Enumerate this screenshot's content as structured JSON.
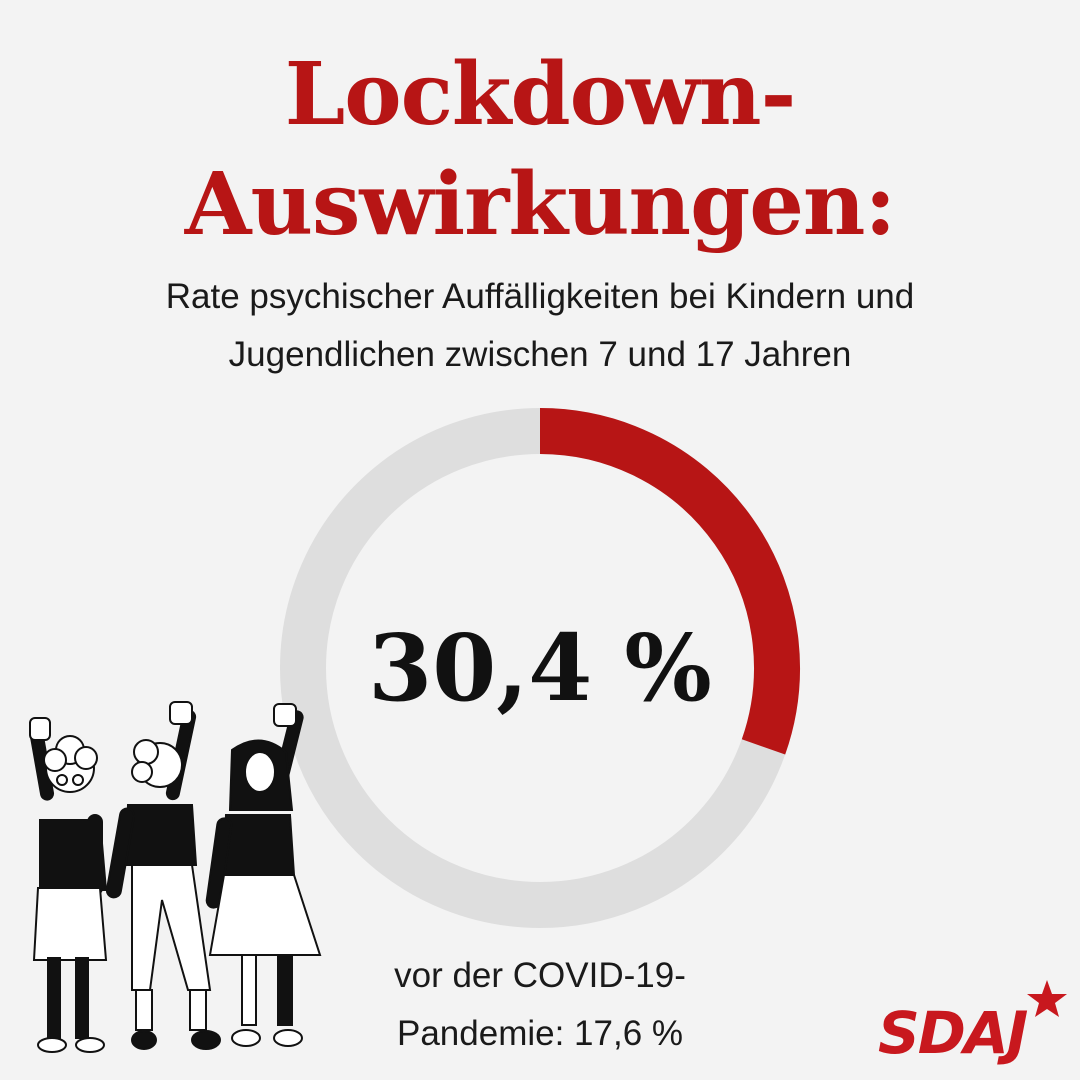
{
  "title": {
    "line1": "Lockdown-",
    "line2": "Auswirkungen:"
  },
  "subtitle": {
    "line1": "Rate psychischer Auffälligkeiten bei Kindern und",
    "line2": "Jugendlichen zwischen 7 und 17 Jahren"
  },
  "center_value": "30,4 %",
  "footnote": {
    "line1": "vor der COVID-19-",
    "line2": "Pandemie: 17,6 %"
  },
  "logo": {
    "text": "SDAJ",
    "icon": "star-icon"
  },
  "illustration": {
    "icon": "protesting-women-illustration"
  },
  "colors": {
    "accent": "#b71515",
    "track": "#dedede",
    "background": "#f3f3f3",
    "text": "#1a1a1a"
  },
  "chart_data": {
    "type": "pie",
    "variant": "donut",
    "values": [
      30.4,
      69.6
    ],
    "unit": "%",
    "colors": [
      "#b71515",
      "#dedede"
    ]
  }
}
